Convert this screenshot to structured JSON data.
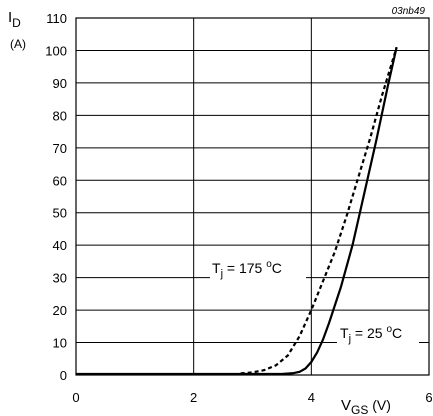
{
  "figure_id": "03nb49",
  "chart_data": {
    "type": "line",
    "ylabel": {
      "main": "I",
      "sub": "D",
      "unit": "(A)"
    },
    "xlabel": {
      "main": "V",
      "sub": "GS",
      "unit": " (V)"
    },
    "xlim": [
      0,
      6
    ],
    "ylim": [
      0,
      110
    ],
    "x_ticks": [
      "0",
      "2",
      "4",
      "6"
    ],
    "y_ticks": [
      "0",
      "10",
      "20",
      "30",
      "40",
      "50",
      "60",
      "70",
      "80",
      "90",
      "100",
      "110"
    ],
    "grid": true,
    "series": [
      {
        "label": {
          "main": "T",
          "sub": "j",
          "rest": " = 25 ",
          "sup": "o",
          "unit": "C"
        },
        "style": "solid",
        "x": [
          0.0,
          1.0,
          2.0,
          3.0,
          3.5,
          3.7,
          3.8,
          3.9,
          4.0,
          4.1,
          4.2,
          4.3,
          4.5,
          4.7,
          4.9,
          5.1,
          5.3,
          5.45
        ],
        "y": [
          0.3,
          0.3,
          0.3,
          0.3,
          0.3,
          0.6,
          1.0,
          2.0,
          4.0,
          7.0,
          11.0,
          16.0,
          27.0,
          40.0,
          56.0,
          72.0,
          89.0,
          101.0
        ]
      },
      {
        "label": {
          "main": "T",
          "sub": "j",
          "rest": " = 175 ",
          "sup": "o",
          "unit": "C"
        },
        "style": "dashed",
        "x": [
          2.8,
          3.0,
          3.2,
          3.4,
          3.5,
          3.6,
          3.8,
          4.0,
          4.2,
          4.4,
          4.6,
          4.8,
          5.0,
          5.2,
          5.45
        ],
        "y": [
          0.5,
          0.8,
          1.5,
          3.0,
          4.5,
          6.0,
          12.0,
          20.0,
          29.0,
          38.0,
          49.0,
          61.0,
          73.0,
          86.0,
          101.0
        ]
      }
    ]
  }
}
